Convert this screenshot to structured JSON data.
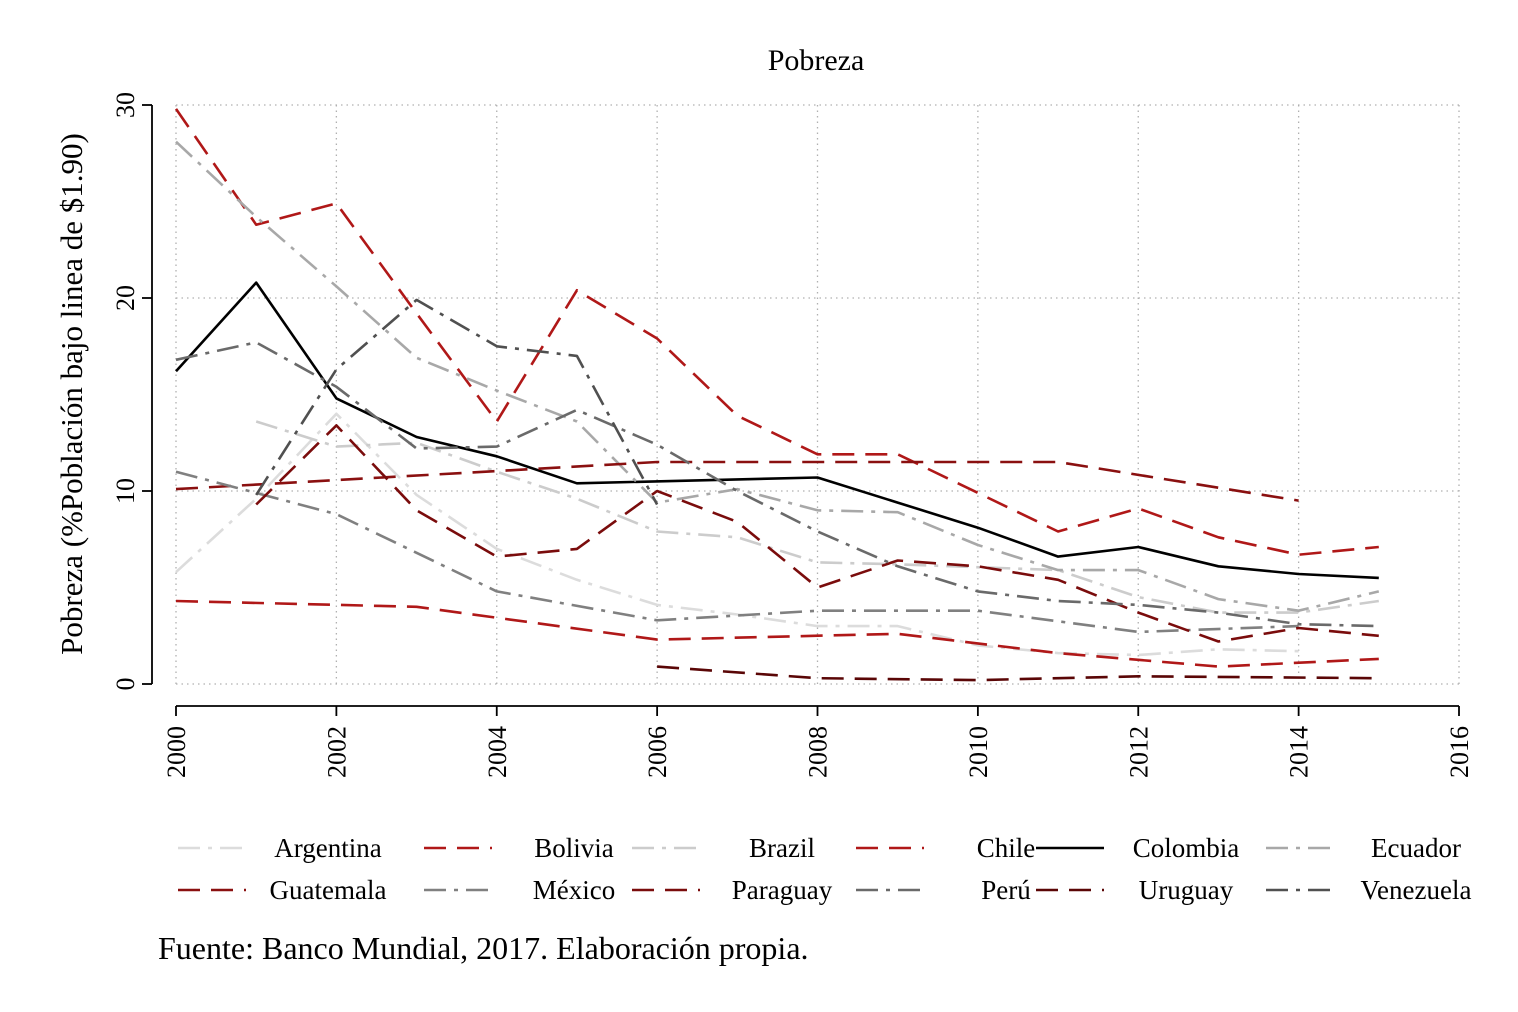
{
  "chart_data": {
    "type": "line",
    "title": "Pobreza",
    "xlabel": "",
    "ylabel": "Pobreza (%Población bajo linea de $1.90)",
    "xlim": [
      2000,
      2016
    ],
    "ylim": [
      0,
      30
    ],
    "x_ticks": [
      2000,
      2002,
      2004,
      2006,
      2008,
      2010,
      2012,
      2014,
      2016
    ],
    "y_ticks": [
      0,
      10,
      20,
      30
    ],
    "grid": true,
    "legend_position": "bottom",
    "series": [
      {
        "name": "Argentina",
        "color": "#dcdcdc",
        "dash": "dashdot",
        "points": [
          [
            2000,
            5.8
          ],
          [
            2001,
            9.6
          ],
          [
            2002,
            14.0
          ],
          [
            2003,
            9.8
          ],
          [
            2004,
            7.0
          ],
          [
            2005,
            5.4
          ],
          [
            2006,
            4.1
          ],
          [
            2007,
            3.6
          ],
          [
            2008,
            3.0
          ],
          [
            2009,
            3.0
          ],
          [
            2010,
            2.0
          ],
          [
            2011,
            1.6
          ],
          [
            2012,
            1.5
          ],
          [
            2013,
            1.8
          ],
          [
            2014,
            1.7
          ]
        ]
      },
      {
        "name": "Bolivia",
        "color": "#b01818",
        "dash": "dash",
        "points": [
          [
            2000,
            29.8
          ],
          [
            2001,
            23.8
          ],
          [
            2002,
            24.9
          ],
          [
            2003,
            19.2
          ],
          [
            2004,
            13.6
          ],
          [
            2005,
            20.4
          ],
          [
            2006,
            17.9
          ],
          [
            2007,
            13.9
          ],
          [
            2008,
            11.9
          ],
          [
            2009,
            11.9
          ],
          [
            2011,
            7.9
          ],
          [
            2012,
            9.1
          ],
          [
            2013,
            7.6
          ],
          [
            2014,
            6.7
          ],
          [
            2015,
            7.1
          ]
        ]
      },
      {
        "name": "Brazil",
        "color": "#cccccc",
        "dash": "dashdot",
        "points": [
          [
            2001,
            13.6
          ],
          [
            2002,
            12.3
          ],
          [
            2003,
            12.5
          ],
          [
            2004,
            11.0
          ],
          [
            2005,
            9.6
          ],
          [
            2006,
            7.9
          ],
          [
            2007,
            7.6
          ],
          [
            2008,
            6.3
          ],
          [
            2009,
            6.2
          ],
          [
            2011,
            5.9
          ],
          [
            2012,
            4.5
          ],
          [
            2013,
            3.7
          ],
          [
            2014,
            3.7
          ],
          [
            2015,
            4.3
          ]
        ]
      },
      {
        "name": "Chile",
        "color": "#b01818",
        "dash": "dash",
        "points": [
          [
            2000,
            4.3
          ],
          [
            2003,
            4.0
          ],
          [
            2006,
            2.3
          ],
          [
            2009,
            2.6
          ],
          [
            2011,
            1.6
          ],
          [
            2013,
            0.9
          ],
          [
            2015,
            1.3
          ]
        ]
      },
      {
        "name": "Colombia",
        "color": "#000000",
        "dash": "solid",
        "points": [
          [
            2000,
            16.2
          ],
          [
            2001,
            20.8
          ],
          [
            2002,
            14.8
          ],
          [
            2003,
            12.8
          ],
          [
            2004,
            11.8
          ],
          [
            2005,
            10.4
          ],
          [
            2008,
            10.7
          ],
          [
            2009,
            9.4
          ],
          [
            2010,
            8.1
          ],
          [
            2011,
            6.6
          ],
          [
            2012,
            7.1
          ],
          [
            2013,
            6.1
          ],
          [
            2014,
            5.7
          ],
          [
            2015,
            5.5
          ]
        ]
      },
      {
        "name": "Ecuador",
        "color": "#a8a8a8",
        "dash": "dashdot",
        "points": [
          [
            2000,
            28.1
          ],
          [
            2001,
            24.2
          ],
          [
            2002,
            20.6
          ],
          [
            2003,
            16.9
          ],
          [
            2004,
            15.2
          ],
          [
            2005,
            13.6
          ],
          [
            2006,
            9.4
          ],
          [
            2007,
            10.1
          ],
          [
            2008,
            9.0
          ],
          [
            2009,
            8.9
          ],
          [
            2010,
            7.2
          ],
          [
            2011,
            5.9
          ],
          [
            2012,
            5.9
          ],
          [
            2013,
            4.4
          ],
          [
            2014,
            3.8
          ],
          [
            2015,
            4.8
          ]
        ]
      },
      {
        "name": "Guatemala",
        "color": "#8a1010",
        "dash": "dash",
        "points": [
          [
            2000,
            10.1
          ],
          [
            2006,
            11.5
          ],
          [
            2011,
            11.5
          ],
          [
            2014,
            9.5
          ]
        ]
      },
      {
        "name": "México",
        "color": "#808080",
        "dash": "dashdot",
        "points": [
          [
            2000,
            11.0
          ],
          [
            2002,
            8.8
          ],
          [
            2004,
            4.8
          ],
          [
            2006,
            3.3
          ],
          [
            2008,
            3.8
          ],
          [
            2010,
            3.8
          ],
          [
            2012,
            2.7
          ],
          [
            2014,
            3.0
          ]
        ]
      },
      {
        "name": "Paraguay",
        "color": "#7a0c0c",
        "dash": "dash",
        "points": [
          [
            2001,
            9.3
          ],
          [
            2002,
            13.4
          ],
          [
            2003,
            9.0
          ],
          [
            2004,
            6.6
          ],
          [
            2005,
            7.0
          ],
          [
            2006,
            10.0
          ],
          [
            2007,
            8.4
          ],
          [
            2008,
            5.0
          ],
          [
            2009,
            6.4
          ],
          [
            2010,
            6.1
          ],
          [
            2011,
            5.4
          ],
          [
            2012,
            3.7
          ],
          [
            2013,
            2.2
          ],
          [
            2014,
            2.9
          ],
          [
            2015,
            2.5
          ]
        ]
      },
      {
        "name": "Perú",
        "color": "#6a6a6a",
        "dash": "dashdot",
        "points": [
          [
            2000,
            16.8
          ],
          [
            2001,
            17.7
          ],
          [
            2002,
            15.4
          ],
          [
            2003,
            12.2
          ],
          [
            2004,
            12.3
          ],
          [
            2005,
            14.2
          ],
          [
            2006,
            12.4
          ],
          [
            2007,
            10.0
          ],
          [
            2008,
            7.9
          ],
          [
            2009,
            6.1
          ],
          [
            2010,
            4.8
          ],
          [
            2011,
            4.3
          ],
          [
            2012,
            4.1
          ],
          [
            2013,
            3.7
          ],
          [
            2014,
            3.1
          ],
          [
            2015,
            3.0
          ]
        ]
      },
      {
        "name": "Uruguay",
        "color": "#5a0606",
        "dash": "dash",
        "points": [
          [
            2006,
            0.9
          ],
          [
            2008,
            0.3
          ],
          [
            2010,
            0.2
          ],
          [
            2012,
            0.4
          ],
          [
            2015,
            0.3
          ]
        ]
      },
      {
        "name": "Venezuela",
        "color": "#505050",
        "dash": "dashdot",
        "points": [
          [
            2001,
            9.8
          ],
          [
            2002,
            16.3
          ],
          [
            2003,
            19.9
          ],
          [
            2004,
            17.5
          ],
          [
            2005,
            17.0
          ],
          [
            2006,
            9.3
          ]
        ]
      }
    ]
  },
  "source_note": "Fuente: Banco Mundial, 2017. Elaboración propia."
}
